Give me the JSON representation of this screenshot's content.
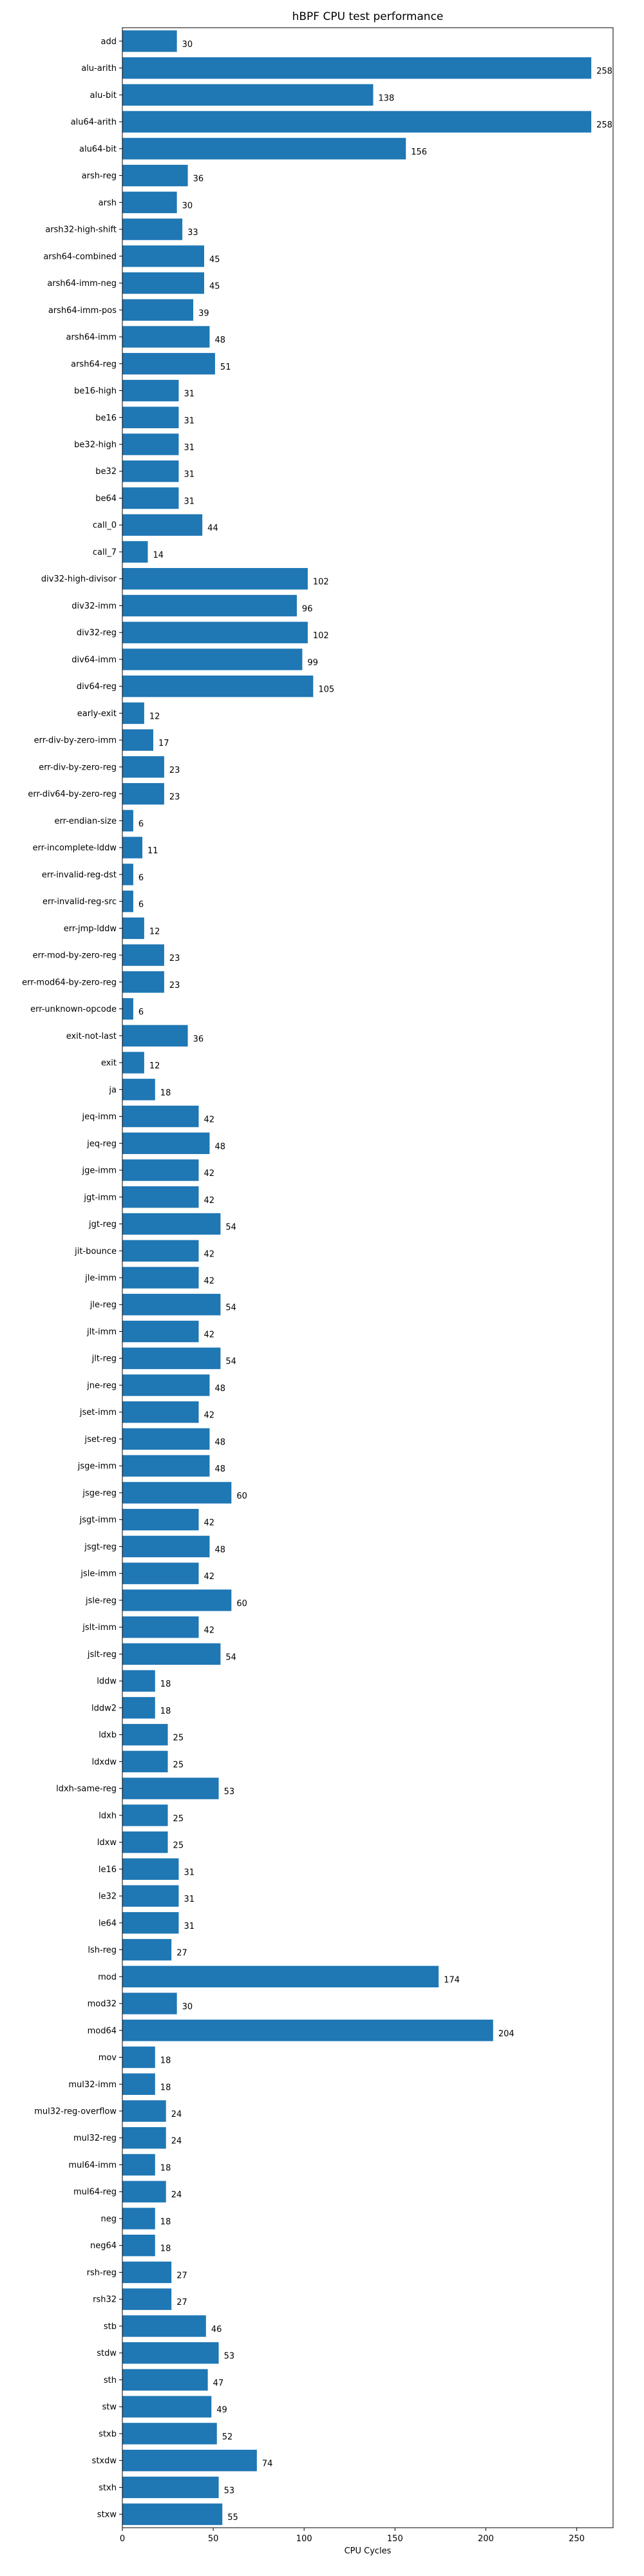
{
  "chart_data": {
    "type": "bar",
    "orientation": "horizontal",
    "title": "hBPF CPU test performance",
    "xlabel": "CPU Cycles",
    "ylabel": "",
    "xlim": [
      0,
      270
    ],
    "xticks": [
      0,
      50,
      100,
      150,
      200,
      250
    ],
    "grid": false,
    "bar_color": "#1f77b4",
    "categories": [
      "add",
      "alu-arith",
      "alu-bit",
      "alu64-arith",
      "alu64-bit",
      "arsh-reg",
      "arsh",
      "arsh32-high-shift",
      "arsh64-combined",
      "arsh64-imm-neg",
      "arsh64-imm-pos",
      "arsh64-imm",
      "arsh64-reg",
      "be16-high",
      "be16",
      "be32-high",
      "be32",
      "be64",
      "call_0",
      "call_7",
      "div32-high-divisor",
      "div32-imm",
      "div32-reg",
      "div64-imm",
      "div64-reg",
      "early-exit",
      "err-div-by-zero-imm",
      "err-div-by-zero-reg",
      "err-div64-by-zero-reg",
      "err-endian-size",
      "err-incomplete-lddw",
      "err-invalid-reg-dst",
      "err-invalid-reg-src",
      "err-jmp-lddw",
      "err-mod-by-zero-reg",
      "err-mod64-by-zero-reg",
      "err-unknown-opcode",
      "exit-not-last",
      "exit",
      "ja",
      "jeq-imm",
      "jeq-reg",
      "jge-imm",
      "jgt-imm",
      "jgt-reg",
      "jit-bounce",
      "jle-imm",
      "jle-reg",
      "jlt-imm",
      "jlt-reg",
      "jne-reg",
      "jset-imm",
      "jset-reg",
      "jsge-imm",
      "jsge-reg",
      "jsgt-imm",
      "jsgt-reg",
      "jsle-imm",
      "jsle-reg",
      "jslt-imm",
      "jslt-reg",
      "lddw",
      "lddw2",
      "ldxb",
      "ldxdw",
      "ldxh-same-reg",
      "ldxh",
      "ldxw",
      "le16",
      "le32",
      "le64",
      "lsh-reg",
      "mod",
      "mod32",
      "mod64",
      "mov",
      "mul32-imm",
      "mul32-reg-overflow",
      "mul32-reg",
      "mul64-imm",
      "mul64-reg",
      "neg",
      "neg64",
      "rsh-reg",
      "rsh32",
      "stb",
      "stdw",
      "sth",
      "stw",
      "stxb",
      "stxdw",
      "stxh",
      "stxw"
    ],
    "values": [
      30,
      258,
      138,
      258,
      156,
      36,
      30,
      33,
      45,
      45,
      39,
      48,
      51,
      31,
      31,
      31,
      31,
      31,
      44,
      14,
      102,
      96,
      102,
      99,
      105,
      12,
      17,
      23,
      23,
      6,
      11,
      6,
      6,
      12,
      23,
      23,
      6,
      36,
      12,
      18,
      42,
      48,
      42,
      42,
      54,
      42,
      42,
      54,
      42,
      54,
      48,
      42,
      48,
      48,
      60,
      42,
      48,
      42,
      60,
      42,
      54,
      18,
      18,
      25,
      25,
      53,
      25,
      25,
      31,
      31,
      31,
      27,
      174,
      30,
      204,
      18,
      18,
      24,
      24,
      18,
      24,
      18,
      18,
      27,
      27,
      46,
      53,
      47,
      49,
      52,
      74,
      53,
      55
    ]
  }
}
